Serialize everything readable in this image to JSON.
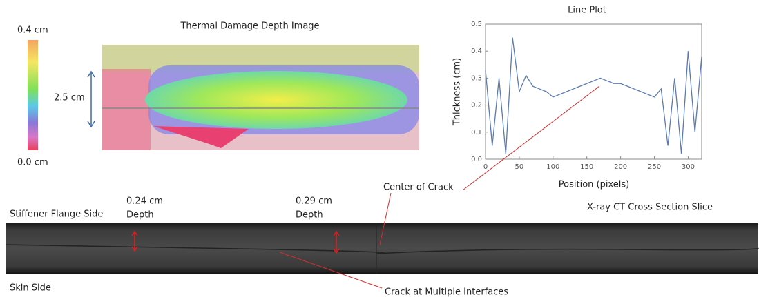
{
  "chart_data": {
    "type": "line",
    "title": "Line Plot",
    "x_label": "Position (pixels)",
    "y_label": "Thickness  (cm)",
    "x": [
      0,
      10,
      20,
      30,
      40,
      50,
      60,
      70,
      80,
      90,
      100,
      110,
      120,
      130,
      140,
      150,
      160,
      170,
      180,
      190,
      200,
      210,
      220,
      230,
      240,
      250,
      260,
      270,
      280,
      290,
      300,
      310,
      320
    ],
    "series": [
      {
        "color": "#5b7bb0",
        "values": [
          0.33,
          0.05,
          0.3,
          0.02,
          0.45,
          0.25,
          0.31,
          0.27,
          0.26,
          0.25,
          0.23,
          0.24,
          0.25,
          0.26,
          0.27,
          0.28,
          0.29,
          0.3,
          0.29,
          0.28,
          0.28,
          0.27,
          0.26,
          0.25,
          0.24,
          0.23,
          0.26,
          0.05,
          0.3,
          0.02,
          0.4,
          0.1,
          0.38
        ]
      }
    ],
    "xlim": [
      0,
      320
    ],
    "ylim": [
      0,
      0.5
    ],
    "xticks": [
      0,
      50,
      100,
      150,
      200,
      250,
      300
    ],
    "yticks": [
      {
        "value": 0,
        "label": "0.0"
      },
      0.1,
      0.2,
      0.3,
      0.4,
      0.5
    ]
  },
  "thermal_image": {
    "title": "Thermal Damage Depth Image",
    "colorbar_top": "0.4 cm",
    "colorbar_bottom": "0.0 cm",
    "dimension": "2.5 cm"
  },
  "ct_slice": {
    "title": "X-ray CT Cross Section Slice",
    "top_side": "Stiffener Flange Side",
    "bottom_side": "Skin Side",
    "depth_1": [
      "0.24 cm",
      "Depth"
    ],
    "depth_2": [
      "0.29 cm",
      "Depth"
    ]
  },
  "annotations": {
    "center": "Center of Crack",
    "crack": "Crack at Multiple Interfaces"
  }
}
